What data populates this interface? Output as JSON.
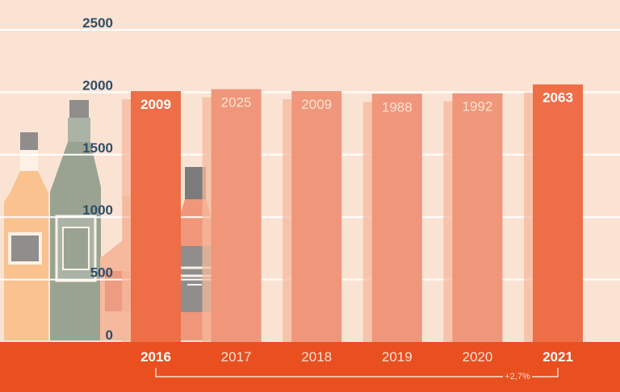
{
  "chart_data": {
    "type": "bar",
    "categories": [
      "2016",
      "2017",
      "2018",
      "2019",
      "2020",
      "2021"
    ],
    "values": [
      2009,
      2025,
      2009,
      1988,
      1992,
      2063
    ],
    "highlighted": [
      "2016",
      "2021"
    ],
    "title": "",
    "xlabel": "",
    "ylabel": "",
    "ylim": [
      0,
      2500
    ],
    "yticks": [
      0,
      500,
      1000,
      1500,
      2000,
      2500
    ],
    "grid": true,
    "annotation": "+2,7%",
    "colors": {
      "background": "#fbe3d4",
      "gridline": "#ffffff",
      "bar": "#f0967a",
      "bar_highlight": "#ee6e47",
      "bar_shadow": "#f5b99e",
      "baseline_band": "#e94f1f",
      "tick_label": "#2f4f67"
    }
  }
}
